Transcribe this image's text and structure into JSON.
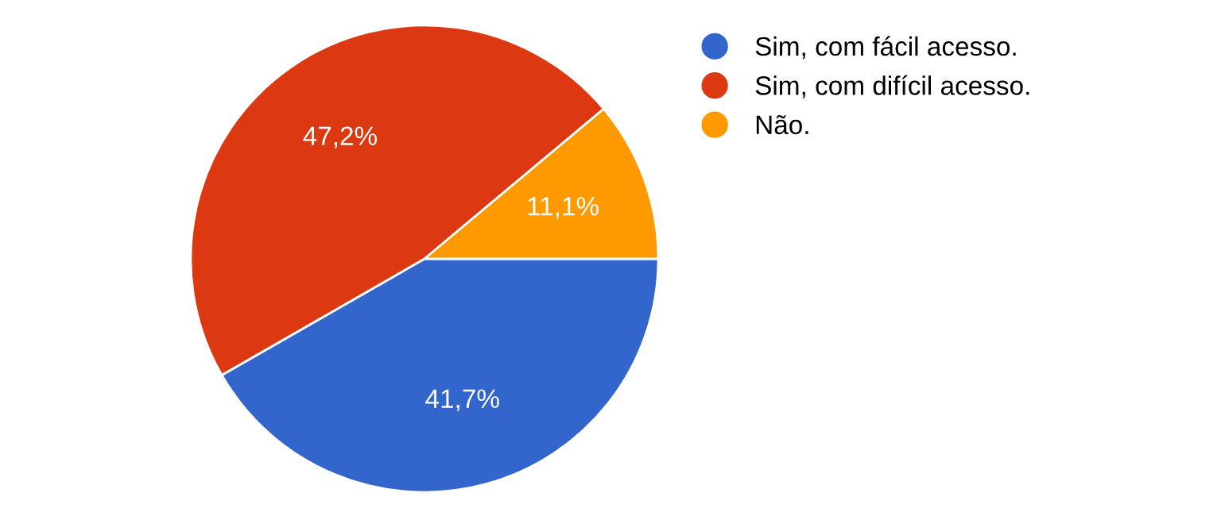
{
  "chart_data": {
    "type": "pie",
    "categories": [
      "Sim, com fácil acesso.",
      "Sim, com difícil acesso.",
      "Não."
    ],
    "values": [
      41.7,
      47.2,
      11.1
    ],
    "value_labels": [
      "41,7%",
      "47,2%",
      "11,1%"
    ],
    "colors": [
      "#3366cc",
      "#dc3912",
      "#ff9900"
    ],
    "legend": "top right"
  }
}
